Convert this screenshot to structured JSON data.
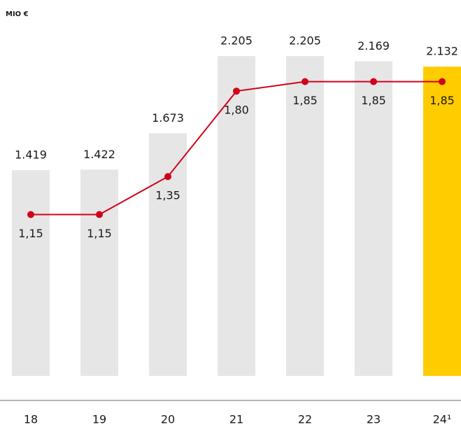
{
  "chart_data": {
    "type": "bar",
    "title": "MIO €",
    "categories": [
      "18",
      "19",
      "20",
      "21",
      "22",
      "23",
      "24¹"
    ],
    "ylim": [
      0,
      2500
    ],
    "y2lim": [
      0.3,
      2.21
    ],
    "series": [
      {
        "type": "bar",
        "colors": [
          "#e6e6e6",
          "#e6e6e6",
          "#e6e6e6",
          "#e6e6e6",
          "#e6e6e6",
          "#e6e6e6",
          "#ffcc00"
        ],
        "values": [
          1419,
          1422,
          1673,
          2205,
          2205,
          2169,
          2132
        ],
        "value_labels": [
          "1.419",
          "1.422",
          "1.673",
          "2.205",
          "2.205",
          "2.169",
          "2.132"
        ]
      },
      {
        "type": "line",
        "axis": "y2",
        "color": "#d0021b",
        "values": [
          1.15,
          1.15,
          1.35,
          1.8,
          1.85,
          1.85,
          1.85
        ],
        "value_labels": [
          "1,15",
          "1,15",
          "1,35",
          "1,80",
          "1,85",
          "1,85",
          "1,85"
        ]
      }
    ]
  }
}
